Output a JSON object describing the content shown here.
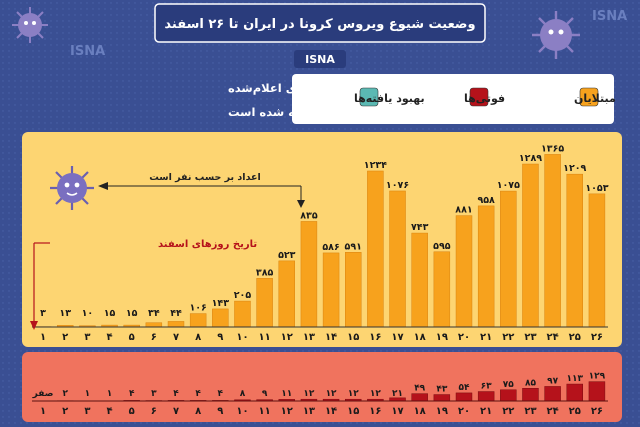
{
  "header": {
    "title": "وضعیت شیوع ویروس کرونا در ایران تا ۲۶ اسفند",
    "watermark": "ISNA",
    "badge": "ISNA"
  },
  "note": {
    "line1": "نمودارها بر اساس آمارهای اعلام‌شده",
    "line2": "از سوی وزارت بهداشت تهیه شده است"
  },
  "legend": [
    {
      "label": "مبتلایان",
      "color": "#f7a21d"
    },
    {
      "label": "فوتی‌ها",
      "color": "#b5121b"
    },
    {
      "label": "بهبود یافته‌ها",
      "color": "#5bb9b3"
    }
  ],
  "annotations": {
    "numbers_label": "اعداد بر حسب نفر است",
    "days_label": "تاریخ روزهای اسفند"
  },
  "colors": {
    "background": "#3a4f93",
    "cases_panel": "#fdd572",
    "cases_bar": "#f7a21d",
    "deaths_panel": "#f0735e",
    "deaths_bar": "#b5121b",
    "recovered": "#5bb9b3"
  },
  "chart_data": [
    {
      "type": "bar",
      "name": "مبتلایان",
      "categories": [
        "۱",
        "۲",
        "۳",
        "۴",
        "۵",
        "۶",
        "۷",
        "۸",
        "۹",
        "۱۰",
        "۱۱",
        "۱۲",
        "۱۳",
        "۱۴",
        "۱۵",
        "۱۶",
        "۱۷",
        "۱۸",
        "۱۹",
        "۲۰",
        "۲۱",
        "۲۲",
        "۲۳",
        "۲۴",
        "۲۵",
        "۲۶"
      ],
      "values": [
        3,
        13,
        10,
        15,
        15,
        34,
        44,
        106,
        143,
        205,
        385,
        523,
        835,
        586,
        591,
        1234,
        1076,
        743,
        595,
        881,
        958,
        1075,
        1289,
        1365,
        1209,
        1053
      ],
      "value_labels": [
        "۳",
        "۱۳",
        "۱۰",
        "۱۵",
        "۱۵",
        "۳۴",
        "۴۴",
        "۱۰۶",
        "۱۴۳",
        "۲۰۵",
        "۳۸۵",
        "۵۲۳",
        "۸۳۵",
        "۵۸۶",
        "۵۹۱",
        "۱۲۳۴",
        "۱۰۷۶",
        "۷۴۳",
        "۵۹۵",
        "۸۸۱",
        "۹۵۸",
        "۱۰۷۵",
        "۱۲۸۹",
        "۱۳۶۵",
        "۱۲۰۹",
        "۱۰۵۳"
      ],
      "ylim": [
        0,
        1400
      ],
      "grid": false
    },
    {
      "type": "bar",
      "name": "فوتی‌ها",
      "categories": [
        "۱",
        "۲",
        "۳",
        "۴",
        "۵",
        "۶",
        "۷",
        "۸",
        "۹",
        "۱۰",
        "۱۱",
        "۱۲",
        "۱۳",
        "۱۴",
        "۱۵",
        "۱۶",
        "۱۷",
        "۱۸",
        "۱۹",
        "۲۰",
        "۲۱",
        "۲۲",
        "۲۳",
        "۲۴",
        "۲۵",
        "۲۶"
      ],
      "values": [
        0,
        2,
        1,
        1,
        4,
        3,
        4,
        4,
        4,
        8,
        9,
        11,
        12,
        12,
        12,
        12,
        21,
        49,
        43,
        54,
        63,
        75,
        85,
        97,
        113,
        129
      ],
      "value_labels": [
        "صفر",
        "۲",
        "۱",
        "۱",
        "۴",
        "۳",
        "۴",
        "۴",
        "۴",
        "۸",
        "۹",
        "۱۱",
        "۱۲",
        "۱۲",
        "۱۲",
        "۱۲",
        "۲۱",
        "۴۹",
        "۴۳",
        "۵۴",
        "۶۳",
        "۷۵",
        "۸۵",
        "۹۷",
        "۱۱۳",
        "۱۲۹"
      ],
      "ylim": [
        0,
        140
      ],
      "grid": false
    }
  ]
}
